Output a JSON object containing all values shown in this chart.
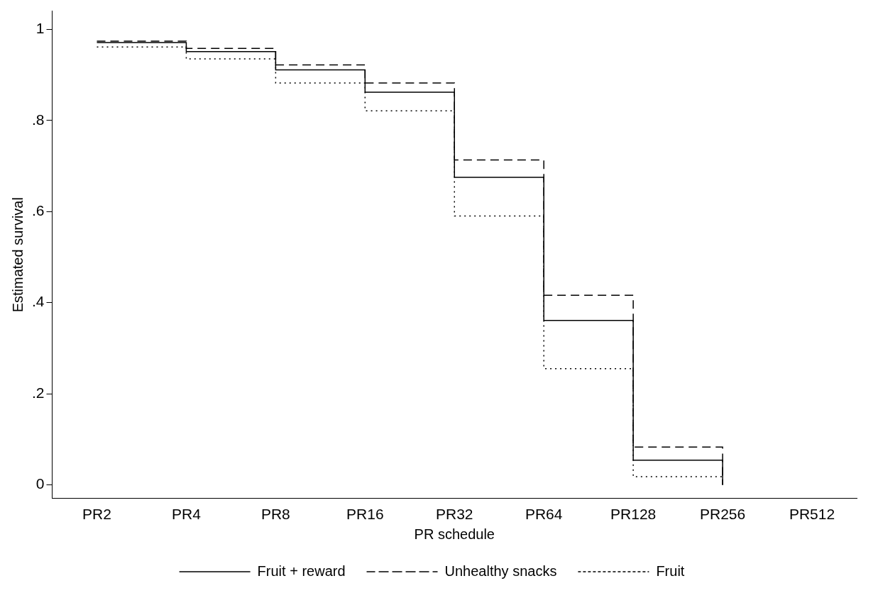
{
  "chart_data": {
    "type": "step",
    "xlabel": "PR schedule",
    "ylabel": "Estimated survival",
    "categories": [
      "PR2",
      "PR4",
      "PR8",
      "PR16",
      "PR32",
      "PR64",
      "PR128",
      "PR256",
      "PR512"
    ],
    "series": [
      {
        "name": "Fruit + reward",
        "color": "#000000",
        "line_style": "solid",
        "values": [
          0.971,
          0.951,
          0.911,
          0.862,
          0.675,
          0.361,
          0.054,
          0,
          null
        ]
      },
      {
        "name": "Unhealthy snacks",
        "color": "#000000",
        "line_style": "dashed",
        "values": [
          0.974,
          0.958,
          0.922,
          0.882,
          0.713,
          0.416,
          0.083,
          0,
          null
        ]
      },
      {
        "name": "Fruit",
        "color": "#000000",
        "line_style": "dotted",
        "values": [
          0.961,
          0.935,
          0.882,
          0.821,
          0.59,
          0.255,
          0.018,
          0,
          null
        ]
      }
    ],
    "ylim": [
      -0.03,
      1.04
    ],
    "yticks": [
      {
        "value": 0,
        "label": "0"
      },
      {
        "value": 0.2,
        "label": ".2"
      },
      {
        "value": 0.4,
        "label": ".4"
      },
      {
        "value": 0.6,
        "label": ".6"
      },
      {
        "value": 0.8,
        "label": ".8"
      },
      {
        "value": 1,
        "label": "1"
      }
    ],
    "grid": false,
    "legend": "bottom"
  }
}
